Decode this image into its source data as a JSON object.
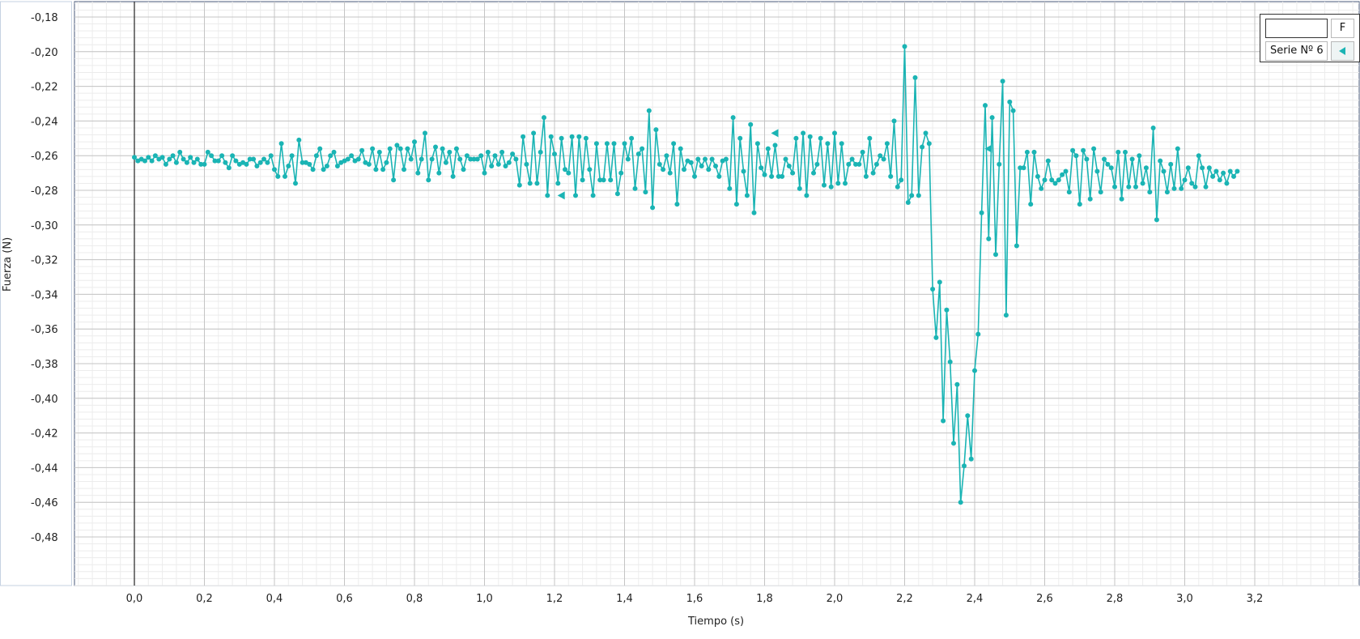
{
  "chart_data": {
    "type": "line",
    "xlabel": "Tiempo (s)",
    "ylabel": "Fuerza (N)",
    "xlim": [
      -0.18,
      3.32
    ],
    "ylim": [
      -0.492,
      -0.172
    ],
    "x_ticks": [
      "0,0",
      "0,2",
      "0,4",
      "0,6",
      "0,8",
      "1,0",
      "1,2",
      "1,4",
      "1,6",
      "1,8",
      "2,0",
      "2,2",
      "2,4",
      "2,6",
      "2,8",
      "3,0",
      "3,2"
    ],
    "y_ticks": [
      "-0,18",
      "-0,20",
      "-0,22",
      "-0,24",
      "-0,26",
      "-0,28",
      "-0,30",
      "-0,32",
      "-0,34",
      "-0,36",
      "-0,38",
      "-0,40",
      "-0,42",
      "-0,44",
      "-0,46",
      "-0,48"
    ],
    "grid": true,
    "series": [
      {
        "name": "Serie Nº 6",
        "color": "#1ab4b4",
        "dt": 0.01,
        "x_start": 0.0,
        "values": [
          -0.261,
          -0.263,
          -0.262,
          -0.263,
          -0.261,
          -0.263,
          -0.26,
          -0.262,
          -0.261,
          -0.265,
          -0.262,
          -0.26,
          -0.264,
          -0.258,
          -0.262,
          -0.264,
          -0.261,
          -0.264,
          -0.262,
          -0.265,
          -0.265,
          -0.258,
          -0.26,
          -0.263,
          -0.263,
          -0.26,
          -0.264,
          -0.267,
          -0.26,
          -0.263,
          -0.265,
          -0.264,
          -0.265,
          -0.262,
          -0.262,
          -0.266,
          -0.264,
          -0.262,
          -0.264,
          -0.26,
          -0.268,
          -0.272,
          -0.253,
          -0.272,
          -0.266,
          -0.26,
          -0.276,
          -0.251,
          -0.264,
          -0.264,
          -0.265,
          -0.268,
          -0.26,
          -0.256,
          -0.268,
          -0.266,
          -0.26,
          -0.258,
          -0.266,
          -0.264,
          -0.263,
          -0.262,
          -0.26,
          -0.263,
          -0.262,
          -0.257,
          -0.264,
          -0.265,
          -0.256,
          -0.268,
          -0.258,
          -0.268,
          -0.264,
          -0.256,
          -0.274,
          -0.254,
          -0.256,
          -0.268,
          -0.256,
          -0.262,
          -0.252,
          -0.27,
          -0.262,
          -0.247,
          -0.274,
          -0.262,
          -0.255,
          -0.27,
          -0.256,
          -0.264,
          -0.258,
          -0.272,
          -0.256,
          -0.262,
          -0.268,
          -0.26,
          -0.262,
          -0.262,
          -0.262,
          -0.26,
          -0.27,
          -0.258,
          -0.266,
          -0.26,
          -0.265,
          -0.258,
          -0.266,
          -0.264,
          -0.259,
          -0.262,
          -0.277,
          -0.249,
          -0.265,
          -0.276,
          -0.247,
          -0.276,
          -0.258,
          -0.238,
          -0.283,
          -0.249,
          -0.259,
          -0.276,
          -0.25,
          -0.268,
          -0.27,
          -0.249,
          -0.283,
          -0.249,
          -0.274,
          -0.25,
          -0.268,
          -0.283,
          -0.253,
          -0.274,
          -0.274,
          -0.253,
          -0.274,
          -0.253,
          -0.282,
          -0.27,
          -0.253,
          -0.262,
          -0.25,
          -0.279,
          -0.259,
          -0.256,
          -0.281,
          -0.234,
          -0.29,
          -0.245,
          -0.265,
          -0.268,
          -0.26,
          -0.27,
          -0.253,
          -0.288,
          -0.256,
          -0.268,
          -0.263,
          -0.264,
          -0.272,
          -0.262,
          -0.266,
          -0.262,
          -0.268,
          -0.262,
          -0.266,
          -0.272,
          -0.263,
          -0.262,
          -0.279,
          -0.238,
          -0.288,
          -0.25,
          -0.269,
          -0.283,
          -0.242,
          -0.293,
          -0.253,
          -0.267,
          -0.271,
          -0.256,
          -0.272,
          -0.254,
          -0.272,
          -0.272,
          -0.262,
          -0.266,
          -0.27,
          -0.25,
          -0.279,
          -0.247,
          -0.283,
          -0.249,
          -0.27,
          -0.265,
          -0.25,
          -0.277,
          -0.253,
          -0.278,
          -0.247,
          -0.276,
          -0.253,
          -0.276,
          -0.265,
          -0.262,
          -0.265,
          -0.265,
          -0.258,
          -0.272,
          -0.25,
          -0.27,
          -0.265,
          -0.26,
          -0.262,
          -0.253,
          -0.272,
          -0.24,
          -0.278,
          -0.274,
          -0.197,
          -0.287,
          -0.283,
          -0.215,
          -0.283,
          -0.255,
          -0.247,
          -0.253,
          -0.337,
          -0.365,
          -0.333,
          -0.413,
          -0.349,
          -0.379,
          -0.426,
          -0.392,
          -0.46,
          -0.439,
          -0.41,
          -0.435,
          -0.384,
          -0.363,
          -0.293,
          -0.231,
          -0.308,
          -0.238,
          -0.317,
          -0.265,
          -0.217,
          -0.352,
          -0.229,
          -0.234,
          -0.312,
          -0.267,
          -0.267,
          -0.258,
          -0.288,
          -0.258,
          -0.272,
          -0.279,
          -0.274,
          -0.263,
          -0.274,
          -0.276,
          -0.274,
          -0.271,
          -0.269,
          -0.281,
          -0.257,
          -0.26,
          -0.288,
          -0.257,
          -0.262,
          -0.285,
          -0.256,
          -0.269,
          -0.281,
          -0.262,
          -0.265,
          -0.267,
          -0.278,
          -0.258,
          -0.285,
          -0.258,
          -0.278,
          -0.262,
          -0.278,
          -0.26,
          -0.276,
          -0.267,
          -0.281,
          -0.244,
          -0.297,
          -0.263,
          -0.269,
          -0.281,
          -0.265,
          -0.279,
          -0.256,
          -0.279,
          -0.274,
          -0.267,
          -0.276,
          -0.278,
          -0.26,
          -0.267,
          -0.278,
          -0.267,
          -0.272,
          -0.269,
          -0.274,
          -0.27,
          -0.276,
          -0.269,
          -0.272,
          -0.269
        ]
      }
    ],
    "markers": [
      {
        "type": "triangle-left",
        "x": 1.22,
        "y": -0.283
      },
      {
        "type": "triangle-left",
        "x": 1.83,
        "y": -0.247
      },
      {
        "type": "triangle-left",
        "x": 2.44,
        "y": -0.256
      }
    ]
  },
  "legend": {
    "input_value": "",
    "button_label": "F",
    "series_label": "Serie Nº 6",
    "series_color": "#1ab4b4"
  }
}
